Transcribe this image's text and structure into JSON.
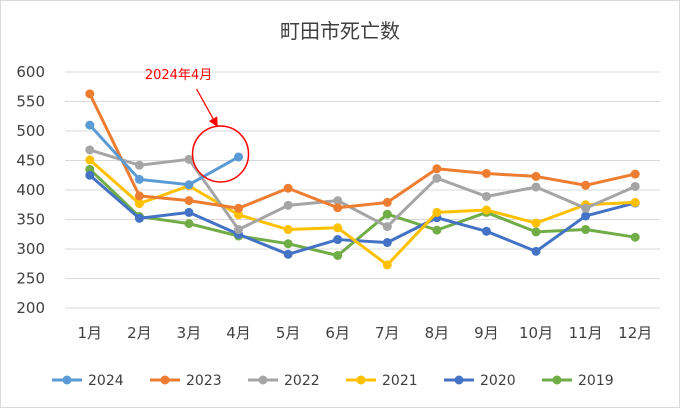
{
  "chart_data": {
    "type": "line",
    "title": "町田市死亡数",
    "categories": [
      "1月",
      "2月",
      "3月",
      "4月",
      "5月",
      "6月",
      "7月",
      "8月",
      "9月",
      "10月",
      "11月",
      "12月"
    ],
    "ylim": [
      200,
      600
    ],
    "yticks": [
      200,
      250,
      300,
      350,
      400,
      450,
      500,
      550,
      600
    ],
    "grid": true,
    "legend_position": "bottom",
    "series": [
      {
        "name": "2024",
        "color": "#5b9bd5",
        "values": [
          510,
          418,
          409,
          456,
          null,
          null,
          null,
          null,
          null,
          null,
          null,
          null
        ]
      },
      {
        "name": "2023",
        "color": "#ed7d31",
        "values": [
          563,
          390,
          382,
          369,
          403,
          370,
          379,
          436,
          428,
          423,
          408,
          427
        ]
      },
      {
        "name": "2022",
        "color": "#a5a5a5",
        "values": [
          468,
          442,
          452,
          333,
          374,
          382,
          338,
          420,
          389,
          405,
          369,
          406
        ]
      },
      {
        "name": "2021",
        "color": "#ffc000",
        "values": [
          451,
          377,
          407,
          358,
          333,
          336,
          273,
          362,
          366,
          344,
          375,
          379
        ]
      },
      {
        "name": "2020",
        "color": "#4472c4",
        "values": [
          425,
          352,
          362,
          325,
          291,
          316,
          311,
          353,
          330,
          296,
          356,
          378
        ]
      },
      {
        "name": "2019",
        "color": "#70ad47",
        "values": [
          435,
          355,
          343,
          322,
          309,
          289,
          359,
          332,
          362,
          329,
          333,
          320
        ]
      }
    ],
    "annotation": {
      "text": "2024年4月",
      "color": "#ff0000",
      "category_index": 3,
      "series": "2024"
    }
  }
}
